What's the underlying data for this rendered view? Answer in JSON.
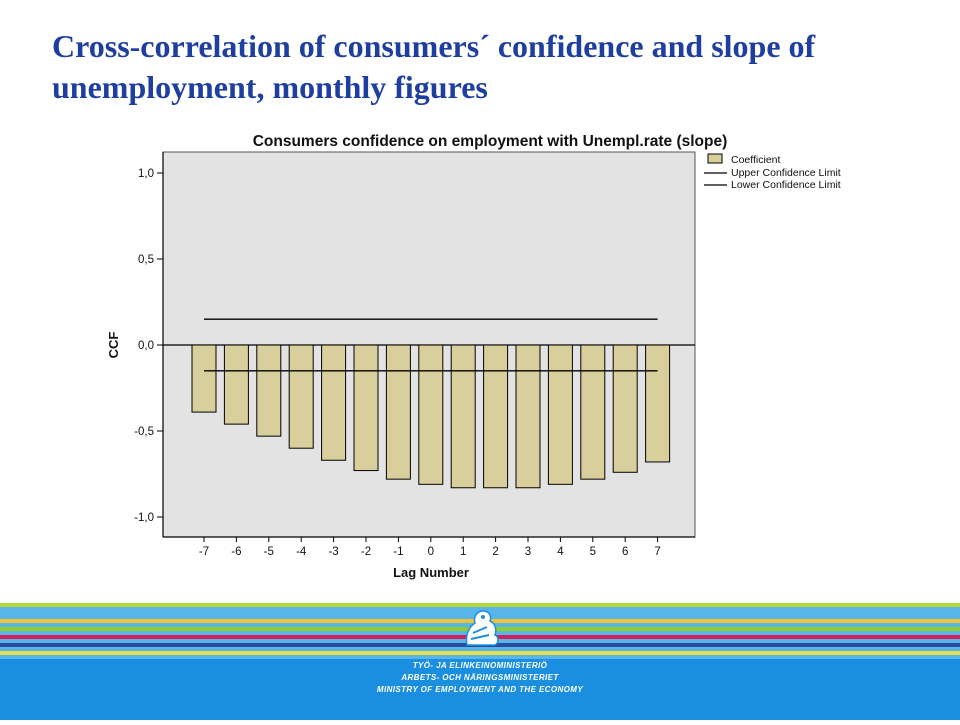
{
  "slide": {
    "title": "Cross-correlation of consumers´ confidence and slope of unemployment, monthly figures"
  },
  "chart_data": {
    "type": "bar",
    "title": "Consumers confidence on employment with Unempl.rate (slope)",
    "xlabel": "Lag Number",
    "ylabel": "CCF",
    "categories": [
      "-7",
      "-6",
      "-5",
      "-4",
      "-3",
      "-2",
      "-1",
      "0",
      "1",
      "2",
      "3",
      "4",
      "5",
      "6",
      "7"
    ],
    "series": [
      {
        "name": "Coefficient",
        "values": [
          -0.39,
          -0.46,
          -0.53,
          -0.6,
          -0.67,
          -0.73,
          -0.78,
          -0.81,
          -0.83,
          -0.83,
          -0.83,
          -0.81,
          -0.78,
          -0.74,
          -0.68
        ]
      }
    ],
    "confidence_limits": {
      "upper": 0.15,
      "lower": -0.15
    },
    "legend": [
      "Coefficient",
      "Upper Confidence Limit",
      "Lower Confidence Limit"
    ],
    "yticks": [
      "1,0",
      "0,5",
      "0,0",
      "-0,5",
      "-1,0"
    ],
    "ylim": [
      -1.1,
      1.1
    ],
    "legend_position": "top-right, outside plot",
    "colors": {
      "bar_fill": "#d8cf9d",
      "bar_stroke": "#000000",
      "plot_bg": "#e3e3e3",
      "line": "#000000"
    }
  },
  "footer": {
    "ministry_lines": [
      "TYÖ- JA ELINKEINOMINISTERIÖ",
      "ARBETS- OCH NÄRINGSMINISTERIET",
      "MINISTRY OF EMPLOYMENT AND THE ECONOMY"
    ],
    "logo_icon": "finnish-lion-crest-icon",
    "colors": {
      "band": "#1a8fe0",
      "stripes": [
        "#b7d83a",
        "#57b5ea",
        "#f2c436",
        "#8fcd2a",
        "#a8227a",
        "#d71e5a",
        "#2b4c9a",
        "#e8e04a"
      ]
    }
  }
}
